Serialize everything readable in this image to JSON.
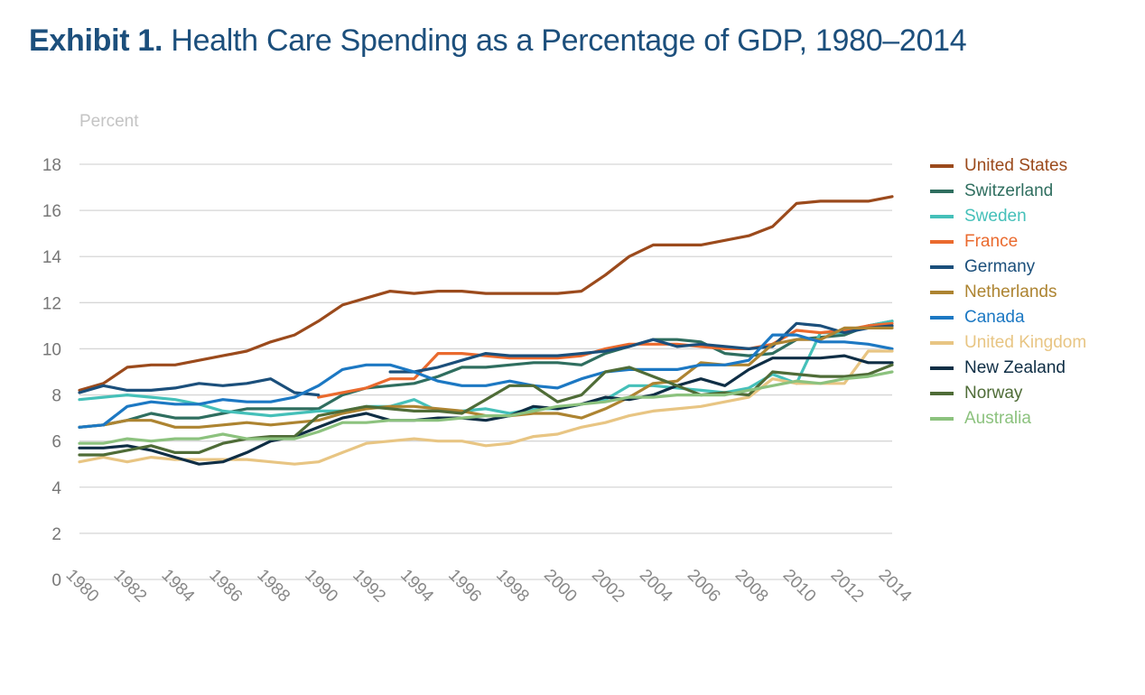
{
  "chart_data": {
    "type": "line",
    "title_bold": "Exhibit 1.",
    "title": "Health Care Spending as a Percentage of GDP, 1980–2014",
    "ylabel": "Percent",
    "xlabel": "",
    "ylim": [
      0,
      18
    ],
    "yticks": [
      "0",
      "2",
      "4",
      "6",
      "8",
      "10",
      "12",
      "14",
      "16",
      "18"
    ],
    "xlim": [
      1980,
      2014
    ],
    "xticks": [
      "1980",
      "1982",
      "1984",
      "1986",
      "1988",
      "1990",
      "1992",
      "1994",
      "1996",
      "1998",
      "2000",
      "2002",
      "2004",
      "2006",
      "2008",
      "2010",
      "2012",
      "2014"
    ],
    "grid": true,
    "legend_position": "right",
    "x": [
      1980,
      1981,
      1982,
      1983,
      1984,
      1985,
      1986,
      1987,
      1988,
      1989,
      1990,
      1991,
      1992,
      1993,
      1994,
      1995,
      1996,
      1997,
      1998,
      1999,
      2000,
      2001,
      2002,
      2003,
      2004,
      2005,
      2006,
      2007,
      2008,
      2009,
      2010,
      2011,
      2012,
      2013,
      2014
    ],
    "series": [
      {
        "name": "United States",
        "color": "#9b4a1c",
        "values": [
          8.2,
          8.5,
          9.2,
          9.3,
          9.3,
          9.5,
          9.7,
          9.9,
          10.3,
          10.6,
          11.2,
          11.9,
          12.2,
          12.5,
          12.4,
          12.5,
          12.5,
          12.4,
          12.4,
          12.4,
          12.4,
          12.5,
          13.2,
          14.0,
          14.5,
          14.5,
          14.5,
          14.7,
          14.9,
          15.3,
          16.3,
          16.4,
          16.4,
          16.4,
          16.6
        ]
      },
      {
        "name": "Switzerland",
        "color": "#2f6e5f",
        "values": [
          6.6,
          6.7,
          6.9,
          7.2,
          7.0,
          7.0,
          7.2,
          7.4,
          7.4,
          7.4,
          7.4,
          8.0,
          8.3,
          8.4,
          8.5,
          8.8,
          9.2,
          9.2,
          9.3,
          9.4,
          9.4,
          9.3,
          9.8,
          10.1,
          10.4,
          10.4,
          10.3,
          9.8,
          9.7,
          9.8,
          10.4,
          10.5,
          10.6,
          11.0,
          11.2
        ]
      },
      {
        "name": "Sweden",
        "color": "#45c0b9",
        "values": [
          7.8,
          7.9,
          8.0,
          7.9,
          7.8,
          7.6,
          7.3,
          7.2,
          7.1,
          7.2,
          7.3,
          7.3,
          7.5,
          7.5,
          7.8,
          7.3,
          7.3,
          7.4,
          7.2,
          7.4,
          7.4,
          7.6,
          7.8,
          8.4,
          8.4,
          8.3,
          8.2,
          8.1,
          8.3,
          8.9,
          8.5,
          10.7,
          10.7,
          11.0,
          11.2
        ]
      },
      {
        "name": "France",
        "color": "#ea6a2e",
        "values": [
          null,
          null,
          null,
          null,
          null,
          null,
          null,
          null,
          null,
          null,
          7.9,
          8.1,
          8.3,
          8.7,
          8.7,
          9.8,
          9.8,
          9.7,
          9.6,
          9.6,
          9.6,
          9.7,
          10.0,
          10.2,
          10.2,
          10.2,
          10.1,
          10.0,
          10.0,
          10.2,
          10.8,
          10.7,
          10.8,
          11.0,
          11.1
        ]
      },
      {
        "name": "Germany",
        "color": "#1b4f7b",
        "values": [
          8.1,
          8.4,
          8.2,
          8.2,
          8.3,
          8.5,
          8.4,
          8.5,
          8.7,
          8.1,
          8.0,
          null,
          null,
          9.0,
          9.0,
          9.2,
          9.5,
          9.8,
          9.7,
          9.7,
          9.7,
          9.8,
          9.9,
          10.1,
          10.4,
          10.1,
          10.2,
          10.1,
          10.0,
          10.1,
          11.1,
          11.0,
          10.7,
          10.9,
          11.0
        ]
      },
      {
        "name": "Netherlands",
        "color": "#ad8431",
        "values": [
          6.6,
          6.7,
          6.9,
          6.9,
          6.6,
          6.6,
          6.7,
          6.8,
          6.7,
          6.8,
          6.9,
          7.2,
          7.4,
          7.5,
          7.5,
          7.4,
          7.3,
          7.1,
          7.1,
          7.2,
          7.2,
          7.0,
          7.4,
          7.9,
          8.5,
          8.6,
          9.4,
          9.3,
          9.3,
          10.2,
          10.4,
          10.4,
          10.9,
          10.9,
          10.9
        ]
      },
      {
        "name": "Canada",
        "color": "#1c78c3",
        "values": [
          6.6,
          6.7,
          7.5,
          7.7,
          7.6,
          7.6,
          7.8,
          7.7,
          7.7,
          7.9,
          8.4,
          9.1,
          9.3,
          9.3,
          9.0,
          8.6,
          8.4,
          8.4,
          8.6,
          8.4,
          8.3,
          8.7,
          9.0,
          9.1,
          9.1,
          9.1,
          9.3,
          9.3,
          9.5,
          10.6,
          10.6,
          10.3,
          10.3,
          10.2,
          10.0
        ]
      },
      {
        "name": "United Kingdom",
        "color": "#e8c583",
        "values": [
          5.1,
          5.3,
          5.1,
          5.3,
          5.2,
          5.2,
          5.2,
          5.2,
          5.1,
          5.0,
          5.1,
          5.5,
          5.9,
          6.0,
          6.1,
          6.0,
          6.0,
          5.8,
          5.9,
          6.2,
          6.3,
          6.6,
          6.8,
          7.1,
          7.3,
          7.4,
          7.5,
          7.7,
          7.9,
          8.7,
          8.5,
          8.5,
          8.5,
          9.9,
          9.9
        ]
      },
      {
        "name": "New Zealand",
        "color": "#0f2e45",
        "values": [
          5.7,
          5.7,
          5.8,
          5.6,
          5.3,
          5.0,
          5.1,
          5.5,
          6.0,
          6.2,
          6.6,
          7.0,
          7.2,
          6.9,
          6.9,
          7.0,
          7.0,
          6.9,
          7.1,
          7.5,
          7.4,
          7.6,
          7.9,
          7.8,
          8.0,
          8.4,
          8.7,
          8.4,
          9.1,
          9.6,
          9.6,
          9.6,
          9.7,
          9.4,
          9.4
        ]
      },
      {
        "name": "Norway",
        "color": "#4f6c37",
        "values": [
          5.4,
          5.4,
          5.6,
          5.8,
          5.5,
          5.5,
          5.9,
          6.1,
          6.2,
          6.2,
          7.1,
          7.3,
          7.5,
          7.4,
          7.3,
          7.3,
          7.2,
          7.8,
          8.4,
          8.4,
          7.7,
          8.0,
          9.0,
          9.2,
          8.8,
          8.4,
          8.0,
          8.1,
          8.0,
          9.0,
          8.9,
          8.8,
          8.8,
          8.9,
          9.3
        ]
      },
      {
        "name": "Australia",
        "color": "#8cc27e",
        "values": [
          5.9,
          5.9,
          6.1,
          6.0,
          6.1,
          6.1,
          6.3,
          6.1,
          6.1,
          6.1,
          6.4,
          6.8,
          6.8,
          6.9,
          6.9,
          6.9,
          7.0,
          7.1,
          7.1,
          7.3,
          7.5,
          7.6,
          7.7,
          7.9,
          7.9,
          8.0,
          8.0,
          8.0,
          8.2,
          8.4,
          8.6,
          8.5,
          8.7,
          8.8,
          9.0
        ]
      }
    ]
  }
}
